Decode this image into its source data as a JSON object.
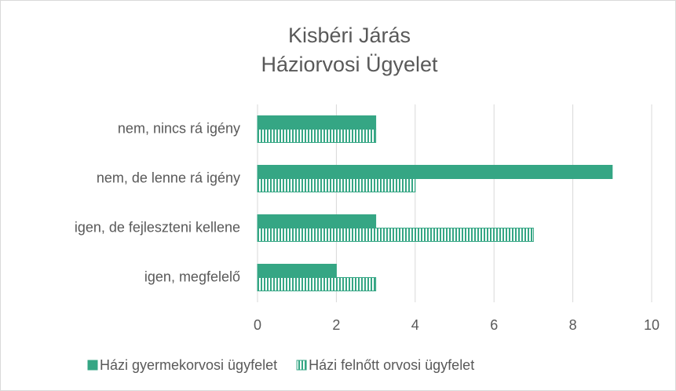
{
  "chart_data": {
    "type": "bar",
    "orientation": "horizontal",
    "title": [
      "Kisbéri Járás",
      "Háziorvosi Ügyelet"
    ],
    "categories": [
      "nem, nincs rá igény",
      "nem, de lenne rá igény",
      "igen, de fejleszteni kellene",
      "igen, megfelelő"
    ],
    "series": [
      {
        "name": "Házi gyermekorvosi ügyfelet",
        "color": "#35a684",
        "pattern": "solid",
        "values": [
          3,
          9,
          3,
          2
        ]
      },
      {
        "name": "Házi felnőtt orvosi ügyfelet",
        "color": "#35a684",
        "pattern": "vertical-stripes",
        "values": [
          3,
          4,
          7,
          3
        ]
      }
    ],
    "xlim": [
      0,
      10
    ],
    "xticks": [
      0,
      2,
      4,
      6,
      8,
      10
    ],
    "grid": true,
    "legend": "bottom"
  }
}
